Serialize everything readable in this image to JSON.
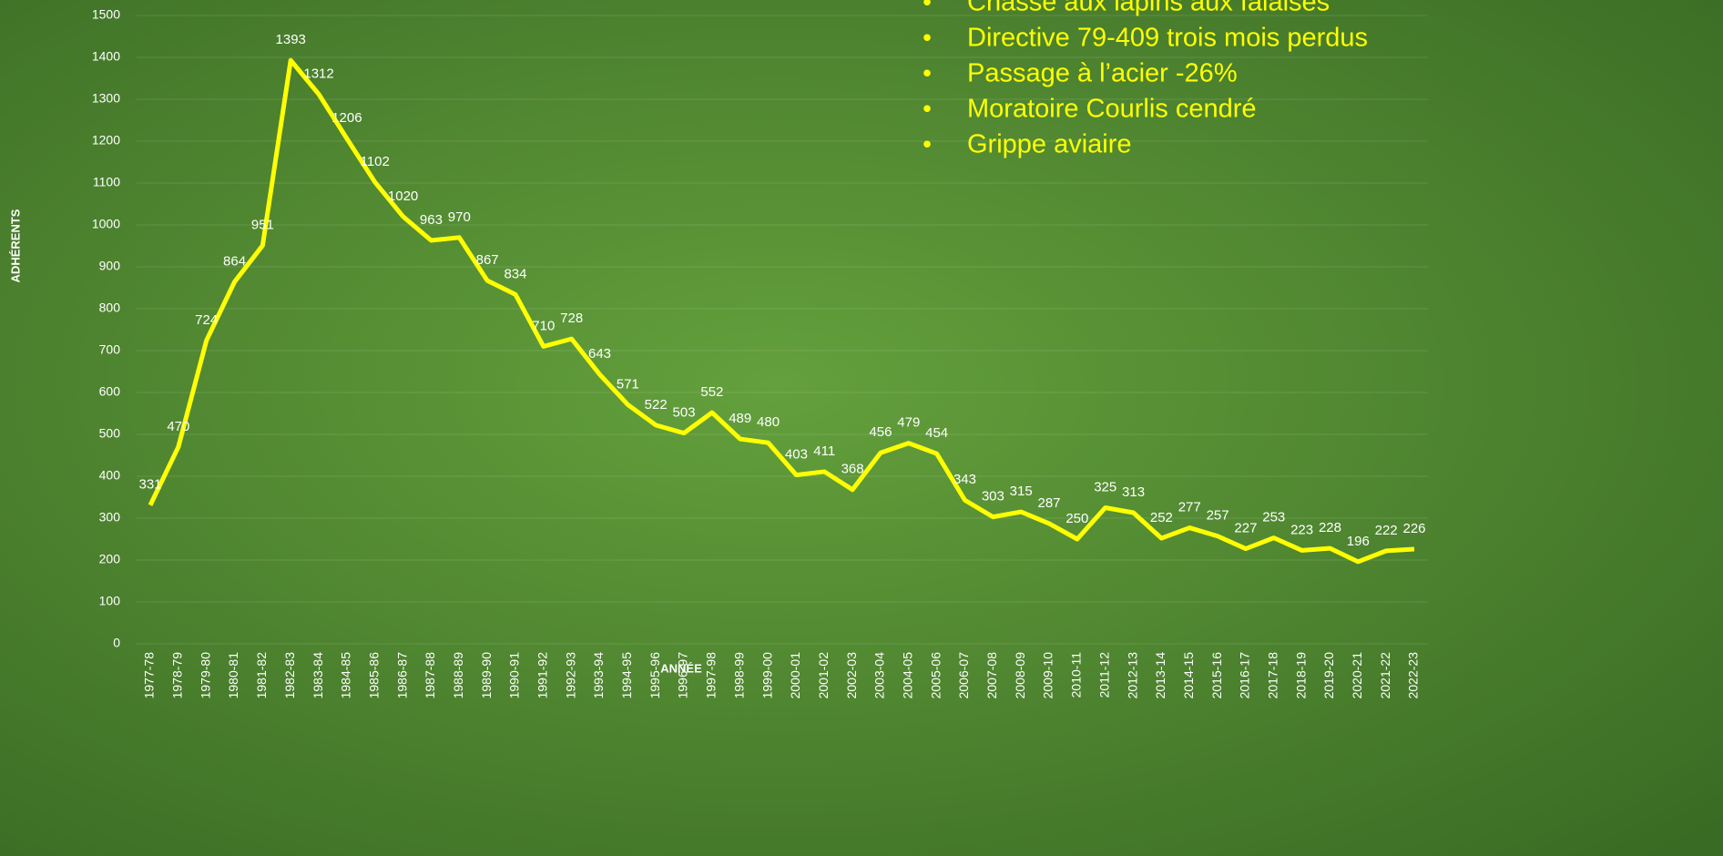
{
  "chart_data": {
    "type": "line",
    "x_label": "ANNÉE",
    "y_label": "ADHÉRENTS",
    "annotations": [
      "Chasse aux lapins aux falaises",
      "Directive 79-409 trois mois perdus",
      "Passage à l’acier -26%",
      "Moratoire Courlis cendré",
      "Grippe aviaire"
    ],
    "categories": [
      "1977-78",
      "1978-79",
      "1979-80",
      "1980-81",
      "1981-82",
      "1982-83",
      "1983-84",
      "1984-85",
      "1985-86",
      "1986-87",
      "1987-88",
      "1988-89",
      "1989-90",
      "1990-91",
      "1991-92",
      "1992-93",
      "1993-94",
      "1994-95",
      "1995-96",
      "1996-97",
      "1997-98",
      "1998-99",
      "1999-00",
      "2000-01",
      "2001-02",
      "2002-03",
      "2003-04",
      "2004-05",
      "2005-06",
      "2006-07",
      "2007-08",
      "2008-09",
      "2009-10",
      "2010-11",
      "2011-12",
      "2012-13",
      "2013-14",
      "2014-15",
      "2015-16",
      "2016-17",
      "2017-18",
      "2018-19",
      "2019-20",
      "2020-21",
      "2021-22",
      "2022-23"
    ],
    "series": [
      {
        "color": "#ffff00",
        "values": [
          331,
          470,
          724,
          864,
          951,
          1393,
          1312,
          1206,
          1102,
          1020,
          963,
          970,
          867,
          834,
          710,
          728,
          643,
          571,
          522,
          503,
          552,
          489,
          480,
          403,
          411,
          368,
          456,
          479,
          454,
          343,
          303,
          315,
          287,
          250,
          325,
          313,
          252,
          277,
          257,
          227,
          253,
          223,
          228,
          196,
          222,
          226
        ]
      }
    ],
    "ylim": [
      0,
      1500
    ],
    "yticks": [
      0,
      100,
      200,
      300,
      400,
      500,
      600,
      700,
      800,
      900,
      1000,
      1100,
      1200,
      1300,
      1400,
      1500
    ],
    "grid": true
  }
}
